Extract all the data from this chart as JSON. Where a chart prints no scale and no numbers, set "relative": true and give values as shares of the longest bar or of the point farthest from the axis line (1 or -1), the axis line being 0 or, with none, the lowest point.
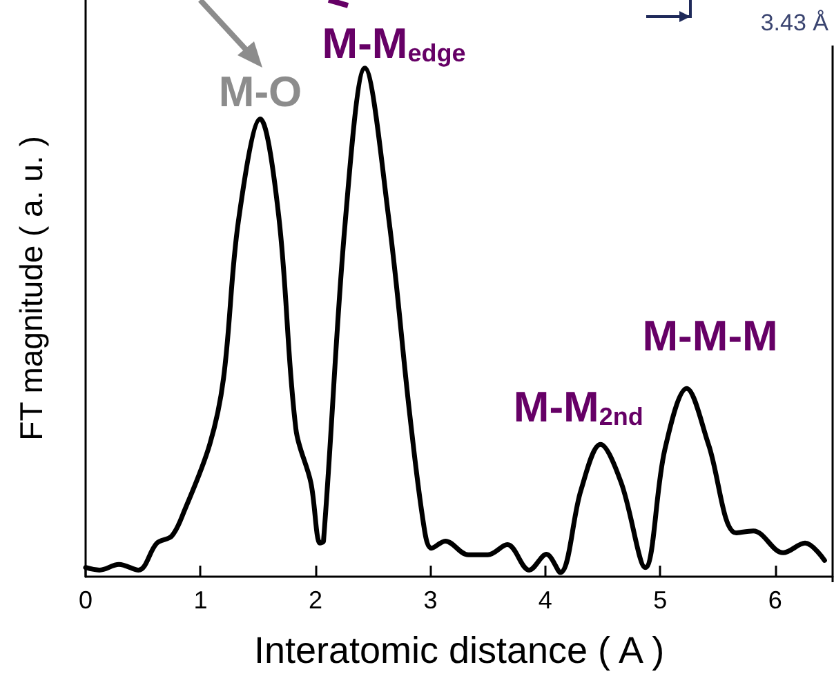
{
  "chart_data": {
    "type": "line",
    "relative": true,
    "xlabel": "Interatomic distance ( A )",
    "ylabel": "FT magnitude ( a. u. )",
    "xlim": [
      0,
      6.5
    ],
    "xticks": [
      0,
      1,
      2,
      3,
      4,
      5,
      6
    ],
    "tick_labels": "x",
    "grid": false,
    "marker": "none",
    "line_style": "solid",
    "series": [
      {
        "color": "#000000",
        "x": [
          0,
          0.12,
          0.29,
          0.46,
          0.62,
          0.75,
          0.86,
          1.08,
          1.2,
          1.33,
          1.52,
          1.68,
          1.83,
          1.96,
          2.04,
          2.07,
          2.26,
          2.43,
          2.64,
          2.82,
          2.95,
          3.01,
          3.13,
          3.33,
          3.5,
          3.67,
          3.86,
          4.01,
          4.13,
          4.31,
          4.48,
          4.66,
          4.87,
          5.04,
          5.23,
          5.42,
          5.66,
          5.81,
          6.07,
          6.26,
          6.43
        ],
        "values": [
          0.018,
          0.013,
          0.024,
          0.013,
          0.066,
          0.08,
          0.13,
          0.26,
          0.39,
          0.7,
          0.9,
          0.71,
          0.29,
          0.185,
          0.066,
          0.07,
          0.7,
          1.0,
          0.7,
          0.32,
          0.09,
          0.056,
          0.07,
          0.043,
          0.043,
          0.063,
          0.013,
          0.044,
          0.008,
          0.17,
          0.26,
          0.185,
          0.018,
          0.25,
          0.37,
          0.26,
          0.086,
          0.09,
          0.047,
          0.066,
          0.032
        ]
      }
    ],
    "annotations": [
      {
        "text": "M-O",
        "x": 1.52,
        "y": 0.9
      },
      {
        "text": "M-M$_{edge}$",
        "x": 2.43,
        "y": 1.0
      },
      {
        "text": "M-M$_{2nd}$",
        "x": 4.48,
        "y": 0.26
      },
      {
        "text": "M-M-M",
        "x": 5.23,
        "y": 0.37
      },
      "3.43 Å"
    ]
  }
}
